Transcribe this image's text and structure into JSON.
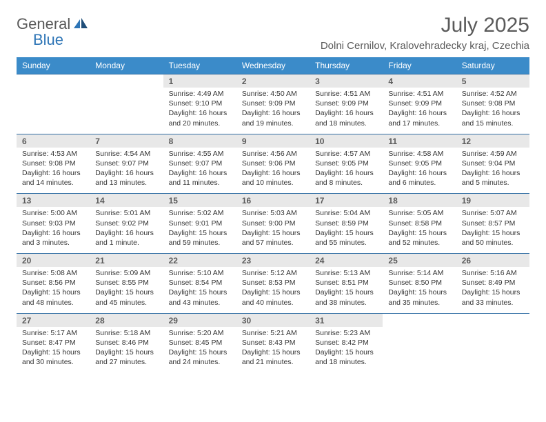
{
  "logo": {
    "word1": "General",
    "word2": "Blue"
  },
  "title": "July 2025",
  "location": "Dolni Cernilov, Kralovehradecky kraj, Czechia",
  "colors": {
    "header_bg": "#3b8bc9",
    "header_text": "#ffffff",
    "daynum_bg": "#e8e8e8",
    "row_border": "#2e6ca3",
    "body_text": "#343434",
    "title_text": "#5a5a5a",
    "logo_gray": "#5a5a5a",
    "logo_blue": "#2e75b6",
    "background": "#ffffff"
  },
  "typography": {
    "title_fontsize": 30,
    "location_fontsize": 15,
    "header_fontsize": 12,
    "daynum_fontsize": 12,
    "detail_fontsize": 10.5
  },
  "day_headers": [
    "Sunday",
    "Monday",
    "Tuesday",
    "Wednesday",
    "Thursday",
    "Friday",
    "Saturday"
  ],
  "weeks": [
    [
      null,
      null,
      {
        "n": "1",
        "sr": "Sunrise: 4:49 AM",
        "ss": "Sunset: 9:10 PM",
        "dl": "Daylight: 16 hours and 20 minutes."
      },
      {
        "n": "2",
        "sr": "Sunrise: 4:50 AM",
        "ss": "Sunset: 9:09 PM",
        "dl": "Daylight: 16 hours and 19 minutes."
      },
      {
        "n": "3",
        "sr": "Sunrise: 4:51 AM",
        "ss": "Sunset: 9:09 PM",
        "dl": "Daylight: 16 hours and 18 minutes."
      },
      {
        "n": "4",
        "sr": "Sunrise: 4:51 AM",
        "ss": "Sunset: 9:09 PM",
        "dl": "Daylight: 16 hours and 17 minutes."
      },
      {
        "n": "5",
        "sr": "Sunrise: 4:52 AM",
        "ss": "Sunset: 9:08 PM",
        "dl": "Daylight: 16 hours and 15 minutes."
      }
    ],
    [
      {
        "n": "6",
        "sr": "Sunrise: 4:53 AM",
        "ss": "Sunset: 9:08 PM",
        "dl": "Daylight: 16 hours and 14 minutes."
      },
      {
        "n": "7",
        "sr": "Sunrise: 4:54 AM",
        "ss": "Sunset: 9:07 PM",
        "dl": "Daylight: 16 hours and 13 minutes."
      },
      {
        "n": "8",
        "sr": "Sunrise: 4:55 AM",
        "ss": "Sunset: 9:07 PM",
        "dl": "Daylight: 16 hours and 11 minutes."
      },
      {
        "n": "9",
        "sr": "Sunrise: 4:56 AM",
        "ss": "Sunset: 9:06 PM",
        "dl": "Daylight: 16 hours and 10 minutes."
      },
      {
        "n": "10",
        "sr": "Sunrise: 4:57 AM",
        "ss": "Sunset: 9:05 PM",
        "dl": "Daylight: 16 hours and 8 minutes."
      },
      {
        "n": "11",
        "sr": "Sunrise: 4:58 AM",
        "ss": "Sunset: 9:05 PM",
        "dl": "Daylight: 16 hours and 6 minutes."
      },
      {
        "n": "12",
        "sr": "Sunrise: 4:59 AM",
        "ss": "Sunset: 9:04 PM",
        "dl": "Daylight: 16 hours and 5 minutes."
      }
    ],
    [
      {
        "n": "13",
        "sr": "Sunrise: 5:00 AM",
        "ss": "Sunset: 9:03 PM",
        "dl": "Daylight: 16 hours and 3 minutes."
      },
      {
        "n": "14",
        "sr": "Sunrise: 5:01 AM",
        "ss": "Sunset: 9:02 PM",
        "dl": "Daylight: 16 hours and 1 minute."
      },
      {
        "n": "15",
        "sr": "Sunrise: 5:02 AM",
        "ss": "Sunset: 9:01 PM",
        "dl": "Daylight: 15 hours and 59 minutes."
      },
      {
        "n": "16",
        "sr": "Sunrise: 5:03 AM",
        "ss": "Sunset: 9:00 PM",
        "dl": "Daylight: 15 hours and 57 minutes."
      },
      {
        "n": "17",
        "sr": "Sunrise: 5:04 AM",
        "ss": "Sunset: 8:59 PM",
        "dl": "Daylight: 15 hours and 55 minutes."
      },
      {
        "n": "18",
        "sr": "Sunrise: 5:05 AM",
        "ss": "Sunset: 8:58 PM",
        "dl": "Daylight: 15 hours and 52 minutes."
      },
      {
        "n": "19",
        "sr": "Sunrise: 5:07 AM",
        "ss": "Sunset: 8:57 PM",
        "dl": "Daylight: 15 hours and 50 minutes."
      }
    ],
    [
      {
        "n": "20",
        "sr": "Sunrise: 5:08 AM",
        "ss": "Sunset: 8:56 PM",
        "dl": "Daylight: 15 hours and 48 minutes."
      },
      {
        "n": "21",
        "sr": "Sunrise: 5:09 AM",
        "ss": "Sunset: 8:55 PM",
        "dl": "Daylight: 15 hours and 45 minutes."
      },
      {
        "n": "22",
        "sr": "Sunrise: 5:10 AM",
        "ss": "Sunset: 8:54 PM",
        "dl": "Daylight: 15 hours and 43 minutes."
      },
      {
        "n": "23",
        "sr": "Sunrise: 5:12 AM",
        "ss": "Sunset: 8:53 PM",
        "dl": "Daylight: 15 hours and 40 minutes."
      },
      {
        "n": "24",
        "sr": "Sunrise: 5:13 AM",
        "ss": "Sunset: 8:51 PM",
        "dl": "Daylight: 15 hours and 38 minutes."
      },
      {
        "n": "25",
        "sr": "Sunrise: 5:14 AM",
        "ss": "Sunset: 8:50 PM",
        "dl": "Daylight: 15 hours and 35 minutes."
      },
      {
        "n": "26",
        "sr": "Sunrise: 5:16 AM",
        "ss": "Sunset: 8:49 PM",
        "dl": "Daylight: 15 hours and 33 minutes."
      }
    ],
    [
      {
        "n": "27",
        "sr": "Sunrise: 5:17 AM",
        "ss": "Sunset: 8:47 PM",
        "dl": "Daylight: 15 hours and 30 minutes."
      },
      {
        "n": "28",
        "sr": "Sunrise: 5:18 AM",
        "ss": "Sunset: 8:46 PM",
        "dl": "Daylight: 15 hours and 27 minutes."
      },
      {
        "n": "29",
        "sr": "Sunrise: 5:20 AM",
        "ss": "Sunset: 8:45 PM",
        "dl": "Daylight: 15 hours and 24 minutes."
      },
      {
        "n": "30",
        "sr": "Sunrise: 5:21 AM",
        "ss": "Sunset: 8:43 PM",
        "dl": "Daylight: 15 hours and 21 minutes."
      },
      {
        "n": "31",
        "sr": "Sunrise: 5:23 AM",
        "ss": "Sunset: 8:42 PM",
        "dl": "Daylight: 15 hours and 18 minutes."
      },
      null,
      null
    ]
  ]
}
